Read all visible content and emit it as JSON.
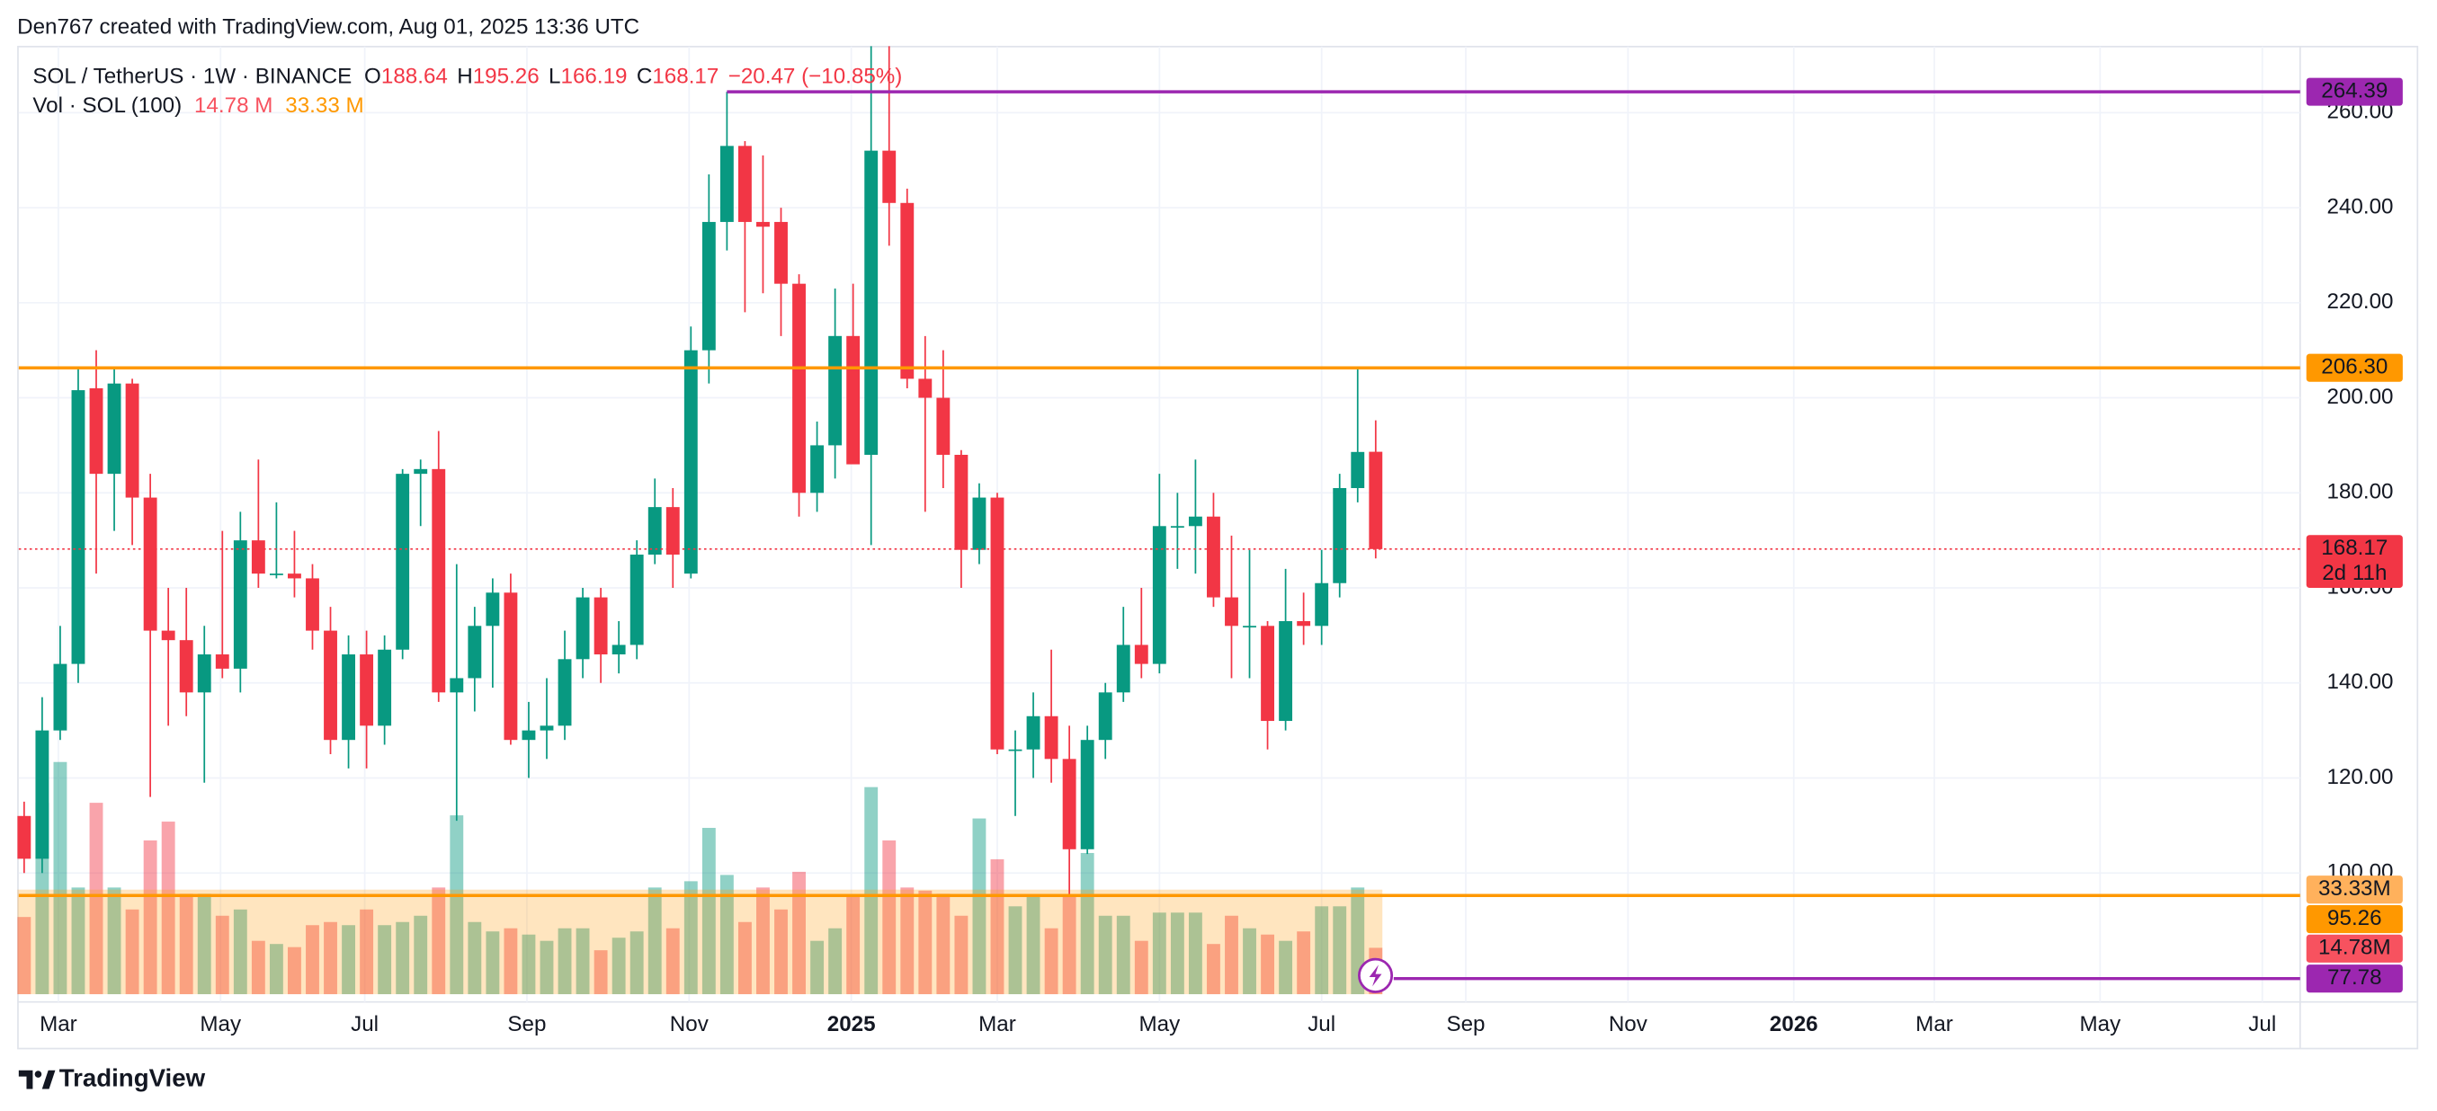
{
  "header": "Den767 created with TradingView.com, Aug 01, 2025 13:36 UTC",
  "brand": "TradingView",
  "legend": {
    "symbol": "SOL / TetherUS · 1W · BINANCE",
    "ohlc": [
      {
        "key": "O",
        "value": "188.64"
      },
      {
        "key": "H",
        "value": "195.26"
      },
      {
        "key": "L",
        "value": "166.19"
      },
      {
        "key": "C",
        "value": "168.17"
      }
    ],
    "change": "−20.47 (−10.85%)",
    "volume_label": "Vol · SOL (100)",
    "volume_values": [
      "14.78 M",
      "33.33 M"
    ]
  },
  "chart_data": {
    "type": "candlestick",
    "open": [
      112,
      103,
      130,
      144,
      202,
      184,
      203,
      179,
      151,
      149,
      138,
      146,
      143,
      170,
      163,
      163,
      162,
      151,
      128,
      146,
      131,
      147,
      184,
      185,
      138,
      141,
      152,
      159,
      128,
      130,
      131,
      145,
      158,
      146,
      148,
      167,
      177,
      163,
      210,
      237,
      253,
      237,
      237,
      224,
      180,
      190,
      213,
      188,
      252,
      241,
      204,
      200,
      188,
      168,
      179,
      126,
      126,
      133,
      124,
      105,
      128,
      138,
      148,
      144,
      173,
      173,
      175,
      158,
      152,
      152,
      132,
      153,
      152,
      161,
      181,
      188.64
    ],
    "high": [
      115,
      137,
      152,
      206,
      210,
      206,
      204,
      184,
      160,
      160,
      152,
      172,
      176,
      187,
      178,
      172,
      165,
      156,
      150,
      151,
      150,
      185,
      187,
      193,
      165,
      156,
      162,
      163,
      136,
      141,
      151,
      160,
      160,
      153,
      170,
      183,
      181,
      215,
      247,
      264.39,
      254,
      251,
      240,
      226,
      195,
      223,
      224,
      274,
      274,
      244,
      213,
      210,
      189,
      182,
      180,
      130,
      138,
      147,
      131,
      131,
      140,
      156,
      160,
      184,
      180,
      187,
      180,
      171,
      168,
      153,
      164,
      159,
      168,
      184,
      206.3,
      195.26
    ],
    "low": [
      100,
      100,
      128,
      140,
      163,
      172,
      169,
      116,
      131,
      133,
      119,
      141,
      138,
      160,
      162,
      158,
      147,
      125,
      122,
      122,
      127,
      145,
      173,
      136,
      111,
      134,
      139,
      127,
      120,
      124,
      128,
      141,
      140,
      142,
      145,
      165,
      160,
      162,
      203,
      231,
      218,
      222,
      213,
      175,
      176,
      183,
      186,
      169,
      232,
      202,
      176,
      181,
      160,
      165,
      125,
      112,
      120,
      119,
      95.26,
      104,
      124,
      136,
      141,
      142,
      164,
      163,
      156,
      141,
      141,
      126,
      130,
      148,
      148,
      158,
      178,
      166.19
    ],
    "close": [
      103,
      130,
      144,
      201.6,
      184,
      203,
      179,
      151,
      149,
      138,
      146,
      143,
      170,
      163,
      163,
      162,
      151,
      128,
      146,
      131,
      147,
      184,
      185,
      138,
      141,
      152,
      159,
      128,
      130,
      131,
      145,
      158,
      146,
      148,
      167,
      177,
      167,
      210,
      237,
      253,
      237,
      236,
      224,
      180,
      190,
      213,
      186,
      252,
      241,
      204,
      200,
      188,
      168,
      179,
      126,
      126,
      133,
      124,
      105,
      128,
      138,
      148,
      144,
      173,
      173,
      175,
      158,
      152,
      152,
      132,
      153,
      152,
      161,
      181,
      188.6,
      168.17
    ],
    "volume": [
      24.6,
      61,
      74,
      34,
      61,
      34,
      27,
      49,
      55,
      32,
      32,
      25,
      27,
      17,
      16,
      15,
      22,
      23,
      22,
      27,
      22,
      23,
      25,
      34,
      57,
      23,
      20,
      21,
      19,
      17,
      21,
      21,
      14,
      18,
      20,
      34,
      21,
      36,
      53,
      38,
      23,
      34,
      27,
      39,
      17,
      21,
      31,
      66,
      49,
      34,
      33,
      32,
      25,
      56,
      43,
      28,
      31,
      21,
      31,
      45,
      25,
      25,
      17,
      26,
      26,
      26,
      16,
      25,
      21,
      19,
      17,
      20,
      28,
      28,
      34,
      14.78
    ],
    "up_color": "#089981",
    "down_color": "#f23645",
    "xlim": [
      -0.3,
      126.3
    ],
    "xticks": [
      {
        "value": 1.9,
        "label": "Mar"
      },
      {
        "value": 10.9,
        "label": "May"
      },
      {
        "value": 18.9,
        "label": "Jul"
      },
      {
        "value": 27.9,
        "label": "Sep"
      },
      {
        "value": 36.9,
        "label": "Nov"
      },
      {
        "value": 45.9,
        "label": "2025"
      },
      {
        "value": 54,
        "label": "Mar"
      },
      {
        "value": 63,
        "label": "May"
      },
      {
        "value": 72,
        "label": "Jul"
      },
      {
        "value": 80,
        "label": "Sep"
      },
      {
        "value": 89,
        "label": "Nov"
      },
      {
        "value": 98.2,
        "label": "2026"
      },
      {
        "value": 106,
        "label": "Mar"
      },
      {
        "value": 115.2,
        "label": "May"
      },
      {
        "value": 124.2,
        "label": "Jul"
      }
    ],
    "ylim": [
      74.5,
      273.9
    ],
    "yticks": [
      {
        "value": 100,
        "label": "100.00"
      },
      {
        "value": 120,
        "label": "120.00"
      },
      {
        "value": 140,
        "label": "140.00"
      },
      {
        "value": 160,
        "label": "160.00"
      },
      {
        "value": 180,
        "label": "180.00"
      },
      {
        "value": 200,
        "label": "200.00"
      },
      {
        "value": 220,
        "label": "220.00"
      },
      {
        "value": 240,
        "label": "240.00"
      },
      {
        "value": 260,
        "label": "260.00"
      }
    ],
    "volume_lim": [
      0,
      302
    ],
    "grid": true,
    "levels": [
      {
        "value": 264.39,
        "label": "264.39",
        "color": "#9c27b0",
        "x_start": 39
      },
      {
        "value": 206.3,
        "label": "206.30",
        "color": "#ff9800"
      },
      {
        "value": 95.26,
        "label": "95.26",
        "color": "#ff9800"
      },
      {
        "value": 77.78,
        "label": "77.78",
        "color": "#9c27b0",
        "x_start": 76
      }
    ],
    "last_price": {
      "value": 168.17,
      "label": "168.17",
      "countdown": "2d 11h",
      "color": "#f23645"
    },
    "volume_ma": {
      "value": 33.33,
      "label": "33.33M",
      "color": "#ff9800"
    },
    "last_volume": {
      "value": 14.78,
      "label": "14.78M",
      "color": "#f7525f"
    }
  }
}
